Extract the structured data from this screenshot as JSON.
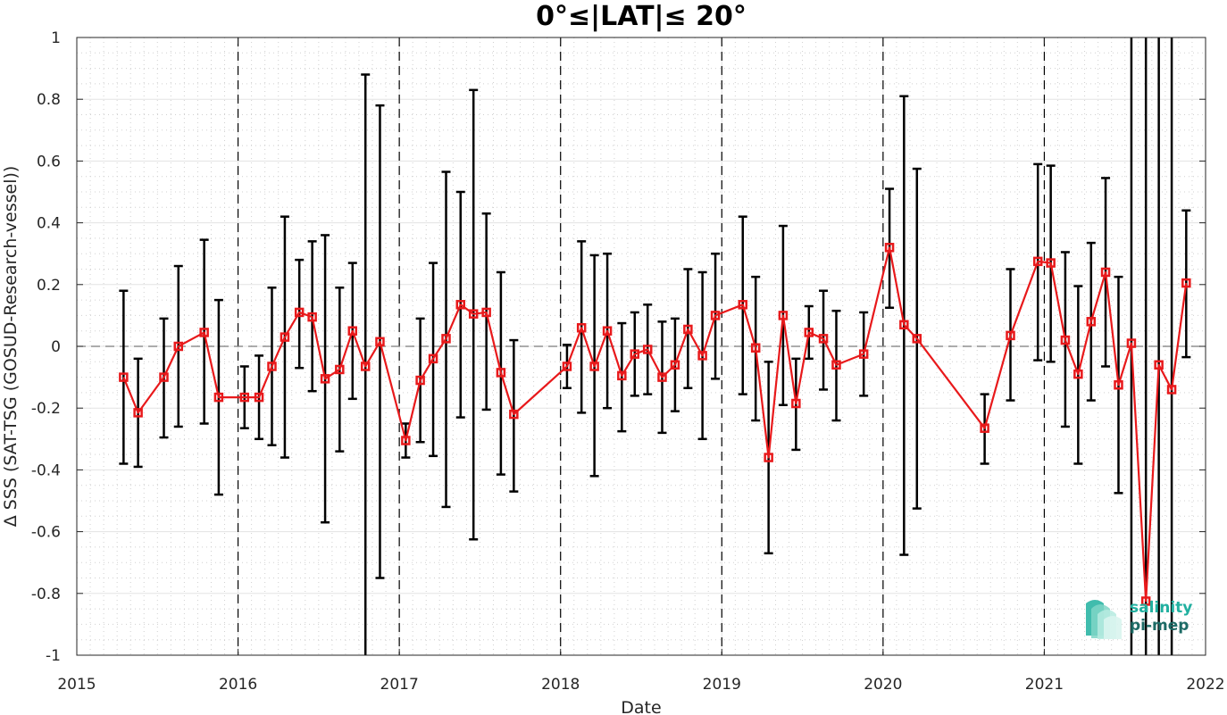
{
  "chart_data": {
    "type": "line",
    "title": "0°≤|LAT|≤ 20°",
    "xlabel": "Date",
    "ylabel": "Δ SSS (SAT-TSG (GOSUD-Research-vessel))",
    "xlim": [
      2015,
      2022
    ],
    "ylim": [
      -1,
      1
    ],
    "x_ticks": [
      "2015",
      "2016",
      "2017",
      "2018",
      "2019",
      "2020",
      "2021",
      "2022"
    ],
    "y_ticks": [
      "1",
      "0.8",
      "0.6",
      "0.4",
      "0.2",
      "0",
      "-0.2",
      "-0.4",
      "-0.6",
      "-0.8",
      "-1"
    ],
    "grid": true,
    "year_boundaries_dashed": [
      2016,
      2017,
      2018,
      2019,
      2020,
      2021
    ],
    "zero_reference_dashed": 0,
    "series": [
      {
        "marker": "square",
        "color": "#e8191b",
        "errorbar_color": "#000000",
        "points": [
          {
            "x": 2015.29,
            "y": -0.1,
            "lo": -0.38,
            "hi": 0.18
          },
          {
            "x": 2015.38,
            "y": -0.215,
            "lo": -0.39,
            "hi": -0.04
          },
          {
            "x": 2015.54,
            "y": -0.1,
            "lo": -0.295,
            "hi": 0.09
          },
          {
            "x": 2015.63,
            "y": 0.0,
            "lo": -0.26,
            "hi": 0.26
          },
          {
            "x": 2015.79,
            "y": 0.045,
            "lo": -0.25,
            "hi": 0.345
          },
          {
            "x": 2015.88,
            "y": -0.165,
            "lo": -0.48,
            "hi": 0.15
          },
          {
            "x": 2016.04,
            "y": -0.165,
            "lo": -0.265,
            "hi": -0.065
          },
          {
            "x": 2016.13,
            "y": -0.165,
            "lo": -0.3,
            "hi": -0.03
          },
          {
            "x": 2016.21,
            "y": -0.065,
            "lo": -0.32,
            "hi": 0.19
          },
          {
            "x": 2016.29,
            "y": 0.03,
            "lo": -0.36,
            "hi": 0.42
          },
          {
            "x": 2016.38,
            "y": 0.11,
            "lo": -0.07,
            "hi": 0.28
          },
          {
            "x": 2016.46,
            "y": 0.095,
            "lo": -0.145,
            "hi": 0.34
          },
          {
            "x": 2016.54,
            "y": -0.105,
            "lo": -0.57,
            "hi": 0.36
          },
          {
            "x": 2016.63,
            "y": -0.075,
            "lo": -0.34,
            "hi": 0.19
          },
          {
            "x": 2016.71,
            "y": 0.05,
            "lo": -0.17,
            "hi": 0.27
          },
          {
            "x": 2016.79,
            "y": -0.065,
            "lo": -1.0,
            "hi": 0.88
          },
          {
            "x": 2016.88,
            "y": 0.015,
            "lo": -0.75,
            "hi": 0.78
          },
          {
            "x": 2017.04,
            "y": -0.305,
            "lo": -0.36,
            "hi": -0.25
          },
          {
            "x": 2017.13,
            "y": -0.11,
            "lo": -0.31,
            "hi": 0.09
          },
          {
            "x": 2017.21,
            "y": -0.04,
            "lo": -0.355,
            "hi": 0.27
          },
          {
            "x": 2017.29,
            "y": 0.025,
            "lo": -0.52,
            "hi": 0.565
          },
          {
            "x": 2017.38,
            "y": 0.135,
            "lo": -0.23,
            "hi": 0.5
          },
          {
            "x": 2017.46,
            "y": 0.105,
            "lo": -0.625,
            "hi": 0.83
          },
          {
            "x": 2017.54,
            "y": 0.11,
            "lo": -0.205,
            "hi": 0.43
          },
          {
            "x": 2017.63,
            "y": -0.085,
            "lo": -0.415,
            "hi": 0.24
          },
          {
            "x": 2017.71,
            "y": -0.22,
            "lo": -0.47,
            "hi": 0.02
          },
          {
            "x": 2018.04,
            "y": -0.065,
            "lo": -0.135,
            "hi": 0.005
          },
          {
            "x": 2018.13,
            "y": 0.06,
            "lo": -0.215,
            "hi": 0.34
          },
          {
            "x": 2018.21,
            "y": -0.065,
            "lo": -0.42,
            "hi": 0.295
          },
          {
            "x": 2018.29,
            "y": 0.05,
            "lo": -0.2,
            "hi": 0.3
          },
          {
            "x": 2018.38,
            "y": -0.095,
            "lo": -0.275,
            "hi": 0.075
          },
          {
            "x": 2018.46,
            "y": -0.025,
            "lo": -0.16,
            "hi": 0.11
          },
          {
            "x": 2018.54,
            "y": -0.01,
            "lo": -0.155,
            "hi": 0.135
          },
          {
            "x": 2018.63,
            "y": -0.1,
            "lo": -0.28,
            "hi": 0.08
          },
          {
            "x": 2018.71,
            "y": -0.06,
            "lo": -0.21,
            "hi": 0.09
          },
          {
            "x": 2018.79,
            "y": 0.055,
            "lo": -0.135,
            "hi": 0.25
          },
          {
            "x": 2018.88,
            "y": -0.03,
            "lo": -0.3,
            "hi": 0.24
          },
          {
            "x": 2018.96,
            "y": 0.1,
            "lo": -0.105,
            "hi": 0.3
          },
          {
            "x": 2019.13,
            "y": 0.135,
            "lo": -0.155,
            "hi": 0.42
          },
          {
            "x": 2019.21,
            "y": -0.005,
            "lo": -0.24,
            "hi": 0.225
          },
          {
            "x": 2019.29,
            "y": -0.36,
            "lo": -0.67,
            "hi": -0.05
          },
          {
            "x": 2019.38,
            "y": 0.1,
            "lo": -0.19,
            "hi": 0.39
          },
          {
            "x": 2019.46,
            "y": -0.185,
            "lo": -0.335,
            "hi": -0.04
          },
          {
            "x": 2019.54,
            "y": 0.045,
            "lo": -0.04,
            "hi": 0.13
          },
          {
            "x": 2019.63,
            "y": 0.025,
            "lo": -0.14,
            "hi": 0.18
          },
          {
            "x": 2019.71,
            "y": -0.06,
            "lo": -0.24,
            "hi": 0.115
          },
          {
            "x": 2019.88,
            "y": -0.025,
            "lo": -0.16,
            "hi": 0.11
          },
          {
            "x": 2020.04,
            "y": 0.32,
            "lo": 0.125,
            "hi": 0.51
          },
          {
            "x": 2020.13,
            "y": 0.07,
            "lo": -0.675,
            "hi": 0.81
          },
          {
            "x": 2020.21,
            "y": 0.025,
            "lo": -0.525,
            "hi": 0.575
          },
          {
            "x": 2020.63,
            "y": -0.265,
            "lo": -0.38,
            "hi": -0.155
          },
          {
            "x": 2020.79,
            "y": 0.035,
            "lo": -0.175,
            "hi": 0.25
          },
          {
            "x": 2020.96,
            "y": 0.275,
            "lo": -0.045,
            "hi": 0.59
          },
          {
            "x": 2021.04,
            "y": 0.27,
            "lo": -0.05,
            "hi": 0.585
          },
          {
            "x": 2021.13,
            "y": 0.02,
            "lo": -0.26,
            "hi": 0.305
          },
          {
            "x": 2021.21,
            "y": -0.09,
            "lo": -0.38,
            "hi": 0.195
          },
          {
            "x": 2021.29,
            "y": 0.08,
            "lo": -0.175,
            "hi": 0.335
          },
          {
            "x": 2021.38,
            "y": 0.24,
            "lo": -0.065,
            "hi": 0.545
          },
          {
            "x": 2021.46,
            "y": -0.125,
            "lo": -0.475,
            "hi": 0.225
          },
          {
            "x": 2021.54,
            "y": 0.01,
            "lo": -1.0,
            "hi": 1.0
          },
          {
            "x": 2021.63,
            "y": -0.825,
            "lo": -1.0,
            "hi": 1.0
          },
          {
            "x": 2021.71,
            "y": -0.06,
            "lo": -1.0,
            "hi": 1.0
          },
          {
            "x": 2021.79,
            "y": -0.14,
            "lo": -1.0,
            "hi": 1.0
          },
          {
            "x": 2021.88,
            "y": 0.205,
            "lo": -0.035,
            "hi": 0.44
          }
        ]
      }
    ]
  },
  "logo": {
    "line1": "salinity",
    "line2": "pi-mep",
    "color1": "#21b0a0",
    "color2": "#1d6b66"
  }
}
